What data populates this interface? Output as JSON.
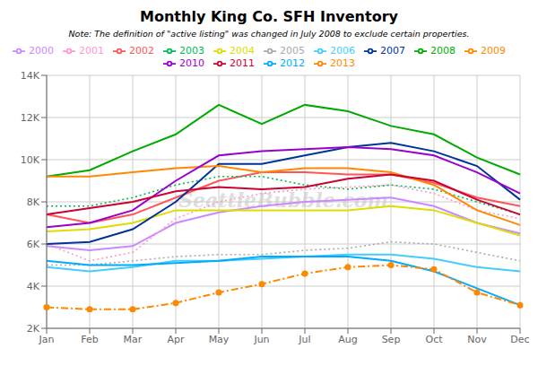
{
  "chart_data": {
    "type": "line",
    "title": "Monthly King Co. SFH Inventory",
    "subtitle": "Note: The definition of \"active listing\" was changed in July 2008 to exclude certain properties.",
    "annotations": [
      "SeattleBubble.com"
    ],
    "categories": [
      "Jan",
      "Feb",
      "Mar",
      "Apr",
      "May",
      "Jun",
      "Jul",
      "Aug",
      "Sep",
      "Oct",
      "Nov",
      "Dec"
    ],
    "series": [
      {
        "name": "2000",
        "color": "#cc88ff",
        "line_style": "solid",
        "values": [
          5900,
          5700,
          5900,
          7000,
          7500,
          7800,
          8000,
          8100,
          8200,
          7800,
          7000,
          6500
        ]
      },
      {
        "name": "2001",
        "color": "#ff99cc",
        "line_style": "dotted",
        "values": [
          6000,
          5200,
          5600,
          7200,
          8000,
          8400,
          8600,
          8700,
          8800,
          8400,
          7600,
          7200
        ]
      },
      {
        "name": "2002",
        "color": "#ff5555",
        "line_style": "solid",
        "values": [
          7400,
          7000,
          7400,
          8200,
          9000,
          9400,
          9400,
          9300,
          9300,
          8900,
          8200,
          7800
        ]
      },
      {
        "name": "2003",
        "color": "#00bb55",
        "line_style": "dotted",
        "values": [
          7800,
          7800,
          8200,
          8800,
          9200,
          9200,
          8800,
          8600,
          8800,
          8600,
          8000,
          7400
        ]
      },
      {
        "name": "2004",
        "color": "#dddd00",
        "line_style": "solid",
        "values": [
          6600,
          6700,
          7000,
          7600,
          7600,
          7600,
          7600,
          7600,
          7800,
          7600,
          7000,
          6400
        ]
      },
      {
        "name": "2005",
        "color": "#aaaaaa",
        "line_style": "dotted",
        "values": [
          5000,
          5000,
          5200,
          5400,
          5500,
          5500,
          5700,
          5800,
          6100,
          6000,
          5600,
          5200
        ]
      },
      {
        "name": "2006",
        "color": "#44ccff",
        "line_style": "solid",
        "values": [
          4900,
          4700,
          4900,
          5200,
          5200,
          5300,
          5400,
          5500,
          5500,
          5300,
          4900,
          4700
        ]
      },
      {
        "name": "2007",
        "color": "#003399",
        "line_style": "solid",
        "values": [
          6000,
          6100,
          6700,
          8000,
          9800,
          9800,
          10200,
          10600,
          10800,
          10400,
          9700,
          8100
        ]
      },
      {
        "name": "2008",
        "color": "#00aa00",
        "line_style": "solid",
        "values": [
          9200,
          9500,
          10400,
          11200,
          12600,
          11700,
          12600,
          12300,
          11600,
          11200,
          10100,
          9300
        ]
      },
      {
        "name": "2009",
        "color": "#ff8800",
        "line_style": "solid",
        "values": [
          9200,
          9200,
          9400,
          9600,
          9700,
          9400,
          9600,
          9600,
          9400,
          8800,
          7600,
          6900
        ]
      },
      {
        "name": "2010",
        "color": "#9900cc",
        "line_style": "solid",
        "values": [
          6800,
          7000,
          7600,
          9000,
          10200,
          10400,
          10500,
          10600,
          10500,
          10200,
          9400,
          8400
        ]
      },
      {
        "name": "2011",
        "color": "#cc0033",
        "line_style": "solid",
        "values": [
          7400,
          7700,
          8000,
          8500,
          8700,
          8600,
          8700,
          9100,
          9300,
          9000,
          8100,
          7400
        ]
      },
      {
        "name": "2012",
        "color": "#00aaff",
        "line_style": "solid",
        "values": [
          5200,
          5000,
          5000,
          5100,
          5200,
          5400,
          5400,
          5400,
          5200,
          4700,
          3900,
          3100
        ]
      },
      {
        "name": "2013",
        "color": "#ff8800",
        "line_style": "dashdot",
        "marker": "circle",
        "values": [
          3000,
          2900,
          2900,
          3200,
          3700,
          4100,
          4600,
          4900,
          5000,
          4800,
          3700,
          3100
        ]
      }
    ],
    "ylim": [
      2000,
      14000
    ],
    "yticks": [
      {
        "value": 2000,
        "label": "2K"
      },
      {
        "value": 4000,
        "label": "4K"
      },
      {
        "value": 6000,
        "label": "6K"
      },
      {
        "value": 8000,
        "label": "8K"
      },
      {
        "value": 10000,
        "label": "10K"
      },
      {
        "value": 12000,
        "label": "12K"
      },
      {
        "value": 14000,
        "label": "14K"
      }
    ],
    "grid": true,
    "legend": "top"
  }
}
